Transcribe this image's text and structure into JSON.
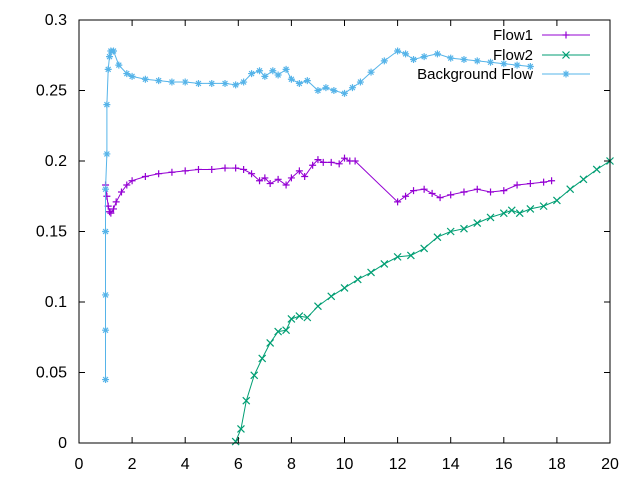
{
  "chart_data": {
    "type": "line",
    "title": "",
    "xlabel": "",
    "ylabel": "",
    "xlim": [
      0,
      20
    ],
    "ylim": [
      0,
      0.3
    ],
    "x_ticks": [
      "0",
      "2",
      "4",
      "6",
      "8",
      "10",
      "12",
      "14",
      "16",
      "18",
      "20"
    ],
    "y_ticks": [
      "0",
      "0.05",
      "0.1",
      "0.15",
      "0.2",
      "0.25",
      "0.3"
    ],
    "grid": false,
    "legend_position": "top-right",
    "series": [
      {
        "name": "Flow1",
        "color": "#9400D3",
        "marker": "plus",
        "points": [
          [
            1.0,
            0.183
          ],
          [
            1.05,
            0.175
          ],
          [
            1.1,
            0.168
          ],
          [
            1.15,
            0.164
          ],
          [
            1.2,
            0.163
          ],
          [
            1.3,
            0.166
          ],
          [
            1.4,
            0.171
          ],
          [
            1.6,
            0.178
          ],
          [
            1.8,
            0.183
          ],
          [
            2.0,
            0.186
          ],
          [
            2.5,
            0.189
          ],
          [
            3.0,
            0.191
          ],
          [
            3.5,
            0.192
          ],
          [
            4.0,
            0.193
          ],
          [
            4.5,
            0.194
          ],
          [
            5.0,
            0.194
          ],
          [
            5.5,
            0.195
          ],
          [
            5.9,
            0.195
          ],
          [
            6.2,
            0.194
          ],
          [
            6.5,
            0.191
          ],
          [
            6.8,
            0.186
          ],
          [
            7.0,
            0.188
          ],
          [
            7.2,
            0.184
          ],
          [
            7.5,
            0.187
          ],
          [
            7.8,
            0.183
          ],
          [
            8.0,
            0.188
          ],
          [
            8.3,
            0.193
          ],
          [
            8.5,
            0.189
          ],
          [
            8.8,
            0.197
          ],
          [
            9.0,
            0.201
          ],
          [
            9.2,
            0.199
          ],
          [
            9.5,
            0.199
          ],
          [
            9.8,
            0.198
          ],
          [
            10.0,
            0.202
          ],
          [
            10.2,
            0.2
          ],
          [
            10.4,
            0.2
          ],
          [
            12.0,
            0.171
          ],
          [
            12.3,
            0.175
          ],
          [
            12.6,
            0.179
          ],
          [
            13.0,
            0.18
          ],
          [
            13.3,
            0.177
          ],
          [
            13.6,
            0.174
          ],
          [
            14.0,
            0.176
          ],
          [
            14.5,
            0.178
          ],
          [
            15.0,
            0.18
          ],
          [
            15.5,
            0.178
          ],
          [
            16.0,
            0.179
          ],
          [
            16.5,
            0.183
          ],
          [
            17.0,
            0.184
          ],
          [
            17.5,
            0.185
          ],
          [
            17.8,
            0.186
          ]
        ]
      },
      {
        "name": "Flow2",
        "color": "#009E73",
        "marker": "cross",
        "points": [
          [
            5.9,
            0.001
          ],
          [
            6.1,
            0.01
          ],
          [
            6.3,
            0.03
          ],
          [
            6.6,
            0.048
          ],
          [
            6.9,
            0.06
          ],
          [
            7.2,
            0.071
          ],
          [
            7.5,
            0.079
          ],
          [
            7.8,
            0.08
          ],
          [
            8.0,
            0.088
          ],
          [
            8.3,
            0.09
          ],
          [
            8.6,
            0.089
          ],
          [
            9.0,
            0.097
          ],
          [
            9.5,
            0.104
          ],
          [
            10.0,
            0.11
          ],
          [
            10.5,
            0.116
          ],
          [
            11.0,
            0.121
          ],
          [
            11.5,
            0.127
          ],
          [
            12.0,
            0.132
          ],
          [
            12.5,
            0.133
          ],
          [
            13.0,
            0.138
          ],
          [
            13.5,
            0.146
          ],
          [
            14.0,
            0.15
          ],
          [
            14.5,
            0.152
          ],
          [
            15.0,
            0.156
          ],
          [
            15.5,
            0.16
          ],
          [
            16.0,
            0.163
          ],
          [
            16.3,
            0.165
          ],
          [
            16.6,
            0.163
          ],
          [
            17.0,
            0.166
          ],
          [
            17.5,
            0.168
          ],
          [
            18.0,
            0.172
          ],
          [
            18.5,
            0.18
          ],
          [
            19.0,
            0.187
          ],
          [
            19.5,
            0.194
          ],
          [
            20.0,
            0.2
          ]
        ]
      },
      {
        "name": "Background Flow",
        "color": "#56B4E9",
        "marker": "star",
        "points": [
          [
            1.0,
            0.045
          ],
          [
            1.0,
            0.08
          ],
          [
            1.0,
            0.105
          ],
          [
            1.0,
            0.15
          ],
          [
            1.0,
            0.18
          ],
          [
            1.05,
            0.205
          ],
          [
            1.05,
            0.24
          ],
          [
            1.1,
            0.265
          ],
          [
            1.15,
            0.274
          ],
          [
            1.2,
            0.278
          ],
          [
            1.3,
            0.278
          ],
          [
            1.5,
            0.268
          ],
          [
            1.8,
            0.262
          ],
          [
            2.0,
            0.26
          ],
          [
            2.5,
            0.258
          ],
          [
            3.0,
            0.257
          ],
          [
            3.5,
            0.256
          ],
          [
            4.0,
            0.256
          ],
          [
            4.5,
            0.255
          ],
          [
            5.0,
            0.255
          ],
          [
            5.5,
            0.255
          ],
          [
            5.9,
            0.254
          ],
          [
            6.2,
            0.256
          ],
          [
            6.5,
            0.262
          ],
          [
            6.8,
            0.264
          ],
          [
            7.0,
            0.26
          ],
          [
            7.3,
            0.264
          ],
          [
            7.5,
            0.261
          ],
          [
            7.8,
            0.265
          ],
          [
            8.0,
            0.258
          ],
          [
            8.3,
            0.255
          ],
          [
            8.6,
            0.257
          ],
          [
            9.0,
            0.25
          ],
          [
            9.3,
            0.252
          ],
          [
            9.6,
            0.25
          ],
          [
            10.0,
            0.248
          ],
          [
            10.3,
            0.252
          ],
          [
            10.6,
            0.256
          ],
          [
            11.0,
            0.263
          ],
          [
            11.5,
            0.271
          ],
          [
            12.0,
            0.278
          ],
          [
            12.3,
            0.276
          ],
          [
            12.6,
            0.272
          ],
          [
            13.0,
            0.274
          ],
          [
            13.5,
            0.276
          ],
          [
            14.0,
            0.273
          ],
          [
            14.5,
            0.272
          ],
          [
            15.0,
            0.271
          ],
          [
            15.5,
            0.27
          ],
          [
            16.0,
            0.269
          ],
          [
            16.5,
            0.268
          ],
          [
            17.0,
            0.267
          ]
        ]
      }
    ]
  }
}
